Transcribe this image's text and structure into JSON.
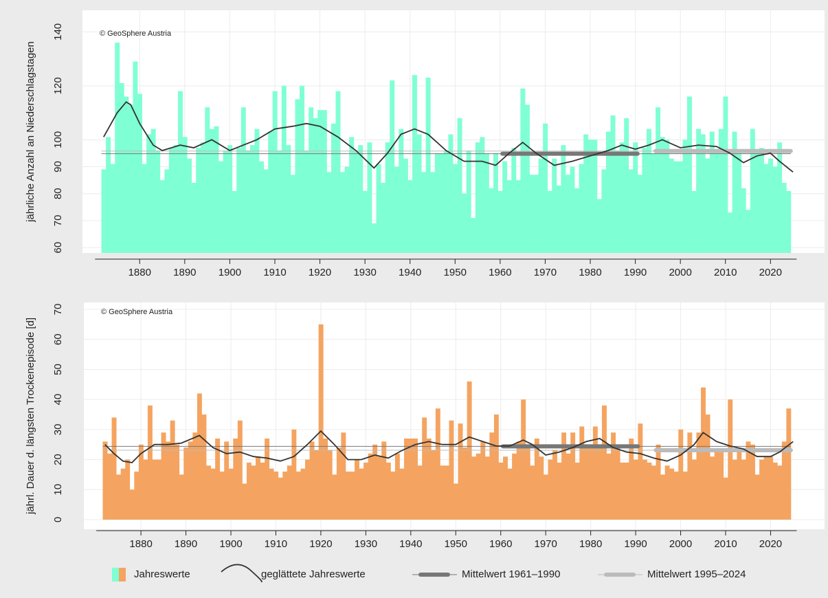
{
  "chart_data": [
    {
      "type": "bar",
      "y_label": "jährliche Anzahl an Niederschlagstagen",
      "annotation": "© GeoSphere Austria",
      "color": "#7fffd4",
      "xlim": [
        1867.3,
        2032
      ],
      "ylim": [
        58,
        148
      ],
      "xticks": [
        1880,
        1890,
        1900,
        1910,
        1920,
        1930,
        1940,
        1950,
        1960,
        1970,
        1980,
        1990,
        2000,
        2010,
        2020
      ],
      "yticks": [
        60,
        70,
        80,
        90,
        100,
        120,
        140
      ],
      "x": [
        1872,
        1873,
        1874,
        1875,
        1876,
        1877,
        1878,
        1879,
        1880,
        1881,
        1882,
        1883,
        1884,
        1885,
        1886,
        1887,
        1888,
        1889,
        1890,
        1891,
        1892,
        1893,
        1894,
        1895,
        1896,
        1897,
        1898,
        1899,
        1900,
        1901,
        1902,
        1903,
        1904,
        1905,
        1906,
        1907,
        1908,
        1909,
        1910,
        1911,
        1912,
        1913,
        1914,
        1915,
        1916,
        1917,
        1918,
        1919,
        1920,
        1921,
        1922,
        1923,
        1924,
        1925,
        1926,
        1927,
        1928,
        1929,
        1930,
        1931,
        1932,
        1933,
        1934,
        1935,
        1936,
        1937,
        1938,
        1939,
        1940,
        1941,
        1942,
        1943,
        1944,
        1945,
        1946,
        1947,
        1948,
        1949,
        1950,
        1951,
        1952,
        1953,
        1954,
        1955,
        1956,
        1957,
        1958,
        1959,
        1960,
        1961,
        1962,
        1963,
        1964,
        1965,
        1966,
        1967,
        1968,
        1969,
        1970,
        1971,
        1972,
        1973,
        1974,
        1975,
        1976,
        1977,
        1978,
        1979,
        1980,
        1981,
        1982,
        1983,
        1984,
        1985,
        1986,
        1987,
        1988,
        1989,
        1990,
        1991,
        1992,
        1993,
        1994,
        1995,
        1996,
        1997,
        1998,
        1999,
        2000,
        2001,
        2002,
        2003,
        2004,
        2005,
        2006,
        2007,
        2008,
        2009,
        2010,
        2011,
        2012,
        2013,
        2014,
        2015,
        2016,
        2017,
        2018,
        2019,
        2020,
        2021,
        2022,
        2023,
        2024
      ],
      "values": [
        89,
        101,
        91,
        136,
        121,
        116,
        113,
        129,
        117,
        91,
        102,
        104,
        96,
        85,
        89,
        97,
        98,
        118,
        101,
        93,
        84,
        97,
        99,
        112,
        104,
        105,
        92,
        96,
        98,
        81,
        97,
        112,
        96,
        98,
        104,
        92,
        89,
        103,
        118,
        96,
        120,
        98,
        87,
        115,
        120,
        96,
        112,
        108,
        111,
        111,
        88,
        106,
        118,
        88,
        90,
        101,
        96,
        98,
        81,
        99,
        69,
        91,
        84,
        99,
        122,
        90,
        104,
        93,
        85,
        124,
        102,
        88,
        123,
        88,
        95,
        95,
        96,
        102,
        91,
        108,
        80,
        96,
        71,
        99,
        101,
        95,
        82,
        95,
        81,
        92,
        85,
        97,
        85,
        119,
        113,
        87,
        87,
        93,
        106,
        81,
        93,
        83,
        98,
        87,
        90,
        82,
        91,
        102,
        100,
        100,
        78,
        89,
        103,
        109,
        96,
        99,
        108,
        89,
        99,
        87,
        97,
        104,
        95,
        112,
        101,
        100,
        93,
        92,
        92,
        100,
        116,
        81,
        104,
        102,
        93,
        103,
        96,
        104,
        116,
        73,
        103,
        95,
        82,
        74,
        104,
        96,
        97,
        91,
        93,
        90,
        99,
        84,
        81
      ],
      "smooth": {
        "color": "#333333",
        "x": [
          1872,
          1875,
          1877,
          1878,
          1880,
          1883,
          1885,
          1889,
          1892,
          1896,
          1900,
          1903,
          1906,
          1910,
          1914,
          1917,
          1920,
          1924,
          1928,
          1932,
          1935,
          1938,
          1941,
          1944,
          1948,
          1952,
          1956,
          1959,
          1962,
          1965,
          1968,
          1972,
          1976,
          1980,
          1984,
          1987,
          1990,
          1993,
          1996,
          2000,
          2004,
          2008,
          2011,
          2014,
          2017,
          2020,
          2022,
          2025
        ],
        "values": [
          101,
          110,
          114,
          113,
          106,
          98,
          96,
          98,
          97,
          100,
          96,
          98,
          100,
          104,
          105,
          106,
          105,
          101,
          96,
          89.5,
          95,
          102,
          104,
          102,
          96,
          92,
          92,
          90.5,
          95,
          99,
          95,
          90.5,
          92,
          94,
          96,
          98,
          96.5,
          98,
          100,
          97,
          98,
          97.5,
          95,
          91.5,
          94,
          95,
          92,
          88
        ]
      },
      "means": [
        {
          "color": "#777777",
          "period": [
            1961,
            1990
          ],
          "value": 94.8
        },
        {
          "color": "#bbbbbb",
          "period": [
            1995,
            2024
          ],
          "value": 95.8
        }
      ]
    },
    {
      "type": "bar",
      "y_label": "jährl. Dauer d. längsten Trockenepisode [d]",
      "annotation": "© GeoSphere Austria",
      "color": "#f4a460",
      "xlim": [
        1867.3,
        2032
      ],
      "ylim": [
        -3.2,
        72.3
      ],
      "xticks": [
        1880,
        1890,
        1900,
        1910,
        1920,
        1930,
        1940,
        1950,
        1960,
        1970,
        1980,
        1990,
        2000,
        2010,
        2020
      ],
      "yticks": [
        0,
        10,
        20,
        30,
        40,
        50,
        60,
        70
      ],
      "x": [
        1872,
        1873,
        1874,
        1875,
        1876,
        1877,
        1878,
        1879,
        1880,
        1881,
        1882,
        1883,
        1884,
        1885,
        1886,
        1887,
        1888,
        1889,
        1890,
        1891,
        1892,
        1893,
        1894,
        1895,
        1896,
        1897,
        1898,
        1899,
        1900,
        1901,
        1902,
        1903,
        1904,
        1905,
        1906,
        1907,
        1908,
        1909,
        1910,
        1911,
        1912,
        1913,
        1914,
        1915,
        1916,
        1917,
        1918,
        1919,
        1920,
        1921,
        1922,
        1923,
        1924,
        1925,
        1926,
        1927,
        1928,
        1929,
        1930,
        1931,
        1932,
        1933,
        1934,
        1935,
        1936,
        1937,
        1938,
        1939,
        1940,
        1941,
        1942,
        1943,
        1944,
        1945,
        1946,
        1947,
        1948,
        1949,
        1950,
        1951,
        1952,
        1953,
        1954,
        1955,
        1956,
        1957,
        1958,
        1959,
        1960,
        1961,
        1962,
        1963,
        1964,
        1965,
        1966,
        1967,
        1968,
        1969,
        1970,
        1971,
        1972,
        1973,
        1974,
        1975,
        1976,
        1977,
        1978,
        1979,
        1980,
        1981,
        1982,
        1983,
        1984,
        1985,
        1986,
        1987,
        1988,
        1989,
        1990,
        1991,
        1992,
        1993,
        1994,
        1995,
        1996,
        1997,
        1998,
        1999,
        2000,
        2001,
        2002,
        2003,
        2004,
        2005,
        2006,
        2007,
        2008,
        2009,
        2010,
        2011,
        2012,
        2013,
        2014,
        2015,
        2016,
        2017,
        2018,
        2019,
        2020,
        2021,
        2022,
        2023,
        2024
      ],
      "values": [
        26,
        22,
        34,
        15,
        17,
        20,
        10,
        16,
        25,
        20,
        38,
        20,
        20,
        29,
        26,
        33,
        25,
        15,
        24,
        26,
        29,
        42,
        35,
        18,
        17,
        27,
        16,
        26,
        17,
        27,
        33,
        12,
        19,
        18,
        21,
        19,
        27,
        17,
        16,
        14,
        16,
        18,
        30,
        16,
        17,
        20,
        26,
        23,
        65,
        27,
        23,
        15,
        24,
        29,
        16,
        16,
        20,
        17,
        19,
        22,
        25,
        21,
        26,
        19,
        16,
        22,
        17,
        27,
        27,
        27,
        18,
        34,
        27,
        23,
        37,
        18,
        18,
        33,
        12,
        32,
        24,
        46,
        21,
        22,
        26,
        21,
        29,
        35,
        19,
        21,
        17,
        22,
        26,
        40,
        25,
        18,
        27,
        21,
        15,
        20,
        23,
        19,
        29,
        22,
        29,
        19,
        31,
        25,
        24,
        31,
        24,
        38,
        22,
        29,
        25,
        19,
        19,
        27,
        20,
        32,
        20,
        19,
        18,
        25,
        15,
        18,
        17,
        16,
        30,
        16,
        29,
        20,
        29,
        44,
        35,
        21,
        23,
        23,
        14,
        40,
        20,
        24,
        20,
        26,
        25,
        15,
        20,
        21,
        21,
        19,
        18,
        26,
        37
      ],
      "smooth": {
        "color": "#333333",
        "x": [
          1872,
          1874,
          1876,
          1878,
          1880,
          1883,
          1886,
          1889,
          1893,
          1896,
          1899,
          1902,
          1905,
          1908,
          1911,
          1914,
          1917,
          1920,
          1923,
          1926,
          1929,
          1932,
          1935,
          1938,
          1941,
          1944,
          1947,
          1950,
          1953,
          1956,
          1959,
          1962,
          1965,
          1967,
          1970,
          1973,
          1976,
          1979,
          1982,
          1985,
          1988,
          1991,
          1994,
          1997,
          2000,
          2003,
          2005,
          2008,
          2011,
          2014,
          2017,
          2020,
          2022,
          2025
        ],
        "values": [
          25,
          22,
          19.5,
          19,
          22,
          25,
          25,
          25.5,
          28,
          24,
          22,
          22.5,
          21,
          20.5,
          19.5,
          21,
          25,
          29.5,
          25,
          20,
          20,
          21.5,
          20.5,
          23,
          25,
          26,
          25,
          25,
          27.5,
          26,
          24.5,
          24.5,
          26.5,
          25,
          21.5,
          22.5,
          24,
          26,
          27,
          24,
          22.5,
          22,
          20.5,
          19.5,
          21.5,
          25,
          29,
          26,
          24.5,
          23.5,
          21,
          21,
          22.5,
          26
        ]
      },
      "means": [
        {
          "color": "#777777",
          "period": [
            1961,
            1990
          ],
          "value": 24.4
        },
        {
          "color": "#bbbbbb",
          "period": [
            1995,
            2024
          ],
          "value": 23.1
        }
      ]
    }
  ],
  "legend": [
    "Jahreswerte",
    "geglättete Jahreswerte",
    "Mittelwert 1961–1990",
    "Mittelwert 1995–2024"
  ]
}
